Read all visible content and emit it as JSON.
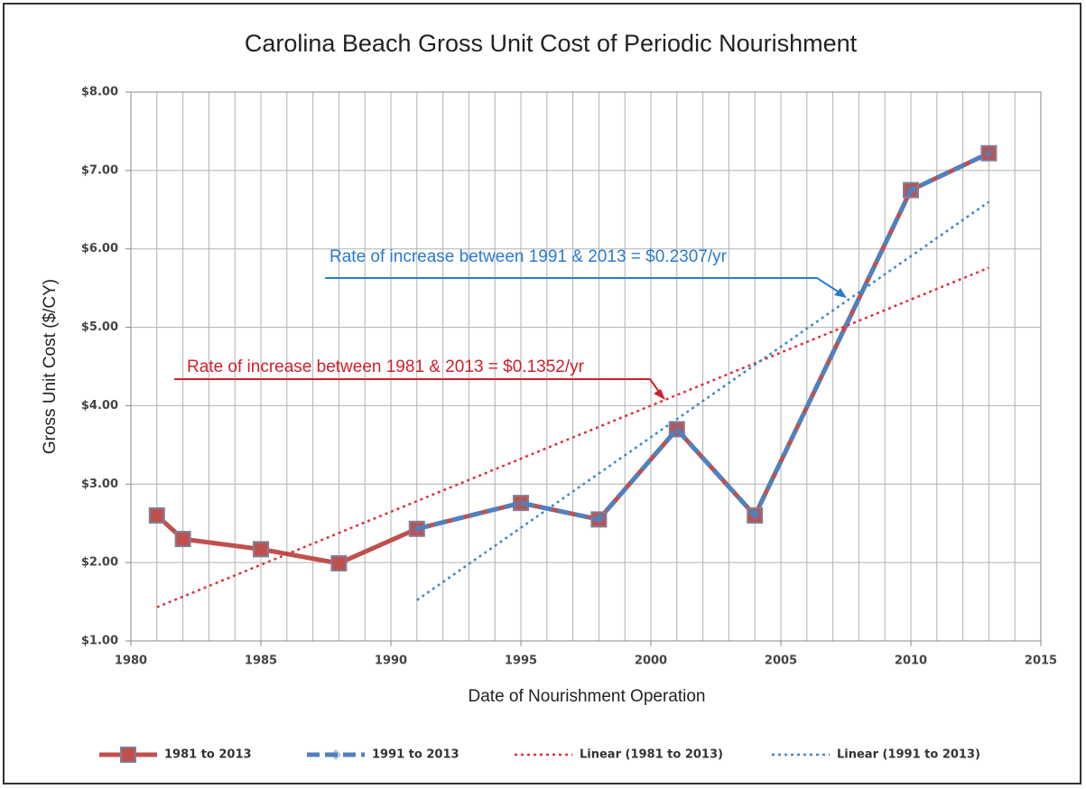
{
  "chart_data": {
    "type": "line",
    "title": "Carolina Beach Gross Unit Cost of Periodic Nourishment",
    "xlabel": "Date of Nourishment Operation",
    "ylabel": "Gross Unit Cost ($/CY)",
    "xlim": [
      1980,
      2015
    ],
    "xticks": [
      1980,
      1985,
      1990,
      1995,
      2000,
      2005,
      2010,
      2015
    ],
    "x_minor_ticks": [
      1981,
      1982,
      1983,
      1984,
      1986,
      1987,
      1988,
      1989,
      1991,
      1992,
      1993,
      1994,
      1996,
      1997,
      1998,
      1999,
      2001,
      2002,
      2003,
      2004,
      2006,
      2007,
      2008,
      2009,
      2011,
      2012,
      2013,
      2014
    ],
    "ylim": [
      1,
      8
    ],
    "yticks": [
      {
        "value": 1,
        "label": "$1.00"
      },
      {
        "value": 2,
        "label": "$2.00"
      },
      {
        "value": 3,
        "label": "$3.00"
      },
      {
        "value": 4,
        "label": "$4.00"
      },
      {
        "value": 5,
        "label": "$5.00"
      },
      {
        "value": 6,
        "label": "$6.00"
      },
      {
        "value": 7,
        "label": "$7.00"
      },
      {
        "value": 8,
        "label": "$8.00"
      }
    ],
    "grid": true,
    "legend": "bottom",
    "series": [
      {
        "name": "1981 to 2013",
        "color": "#c0504d",
        "style": "solid",
        "marker": "square",
        "x": [
          1981,
          1982,
          1985,
          1988,
          1991,
          1995,
          1998,
          2001,
          2004,
          2010,
          2013
        ],
        "values": [
          2.6,
          2.3,
          2.17,
          1.99,
          2.43,
          2.76,
          2.55,
          3.7,
          2.6,
          6.75,
          7.22
        ]
      },
      {
        "name": "1991 to 2013",
        "color": "#4f81bd",
        "style": "dashed",
        "marker": "diamond",
        "x": [
          1991,
          1995,
          1998,
          2001,
          2004,
          2010,
          2013
        ],
        "values": [
          2.43,
          2.76,
          2.55,
          3.7,
          2.6,
          6.75,
          7.22
        ]
      },
      {
        "name": "Linear (1981 to 2013)",
        "color": "#e0303a",
        "style": "dotted",
        "marker": null,
        "x": [
          1981,
          2013
        ],
        "values": [
          1.43,
          5.76
        ]
      },
      {
        "name": "Linear (1991 to 2013)",
        "color": "#3d86d0",
        "style": "dotted",
        "marker": null,
        "x": [
          1991,
          2013
        ],
        "values": [
          1.52,
          6.6
        ]
      }
    ],
    "annotations": [
      {
        "text": "Rate of increase between 1991 & 2013 = $0.2307/yr",
        "color": "#2a7bd0"
      },
      {
        "text": "Rate of increase between 1981 & 2013 = $0.1352/yr",
        "color": "#d0202a"
      }
    ]
  }
}
